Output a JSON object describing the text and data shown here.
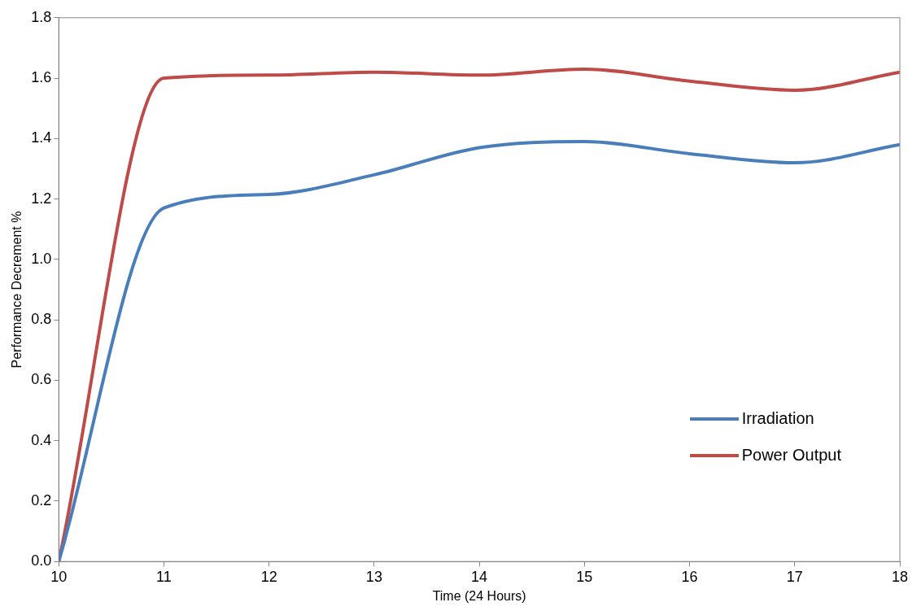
{
  "chart_data": {
    "type": "line",
    "xlabel": "Time (24 Hours)",
    "ylabel": "Performance Decrement %",
    "x": [
      10,
      11,
      12,
      13,
      14,
      15,
      16,
      17,
      18
    ],
    "series": [
      {
        "name": "Irradiation",
        "color": "#4a7ebb",
        "values": [
          0,
          1.17,
          1.215,
          1.28,
          1.37,
          1.39,
          1.35,
          1.32,
          1.38
        ]
      },
      {
        "name": "Power Output",
        "color": "#be4b48",
        "values": [
          0,
          1.6,
          1.61,
          1.62,
          1.61,
          1.63,
          1.59,
          1.56,
          1.62
        ]
      }
    ],
    "xlim": [
      10,
      18
    ],
    "xticks": [
      10,
      11,
      12,
      13,
      14,
      15,
      16,
      17,
      18
    ],
    "ylim": [
      0,
      1.8
    ],
    "yticks": [
      {
        "value": 0,
        "label": "0.0"
      },
      {
        "value": 0.2,
        "label": "0.2"
      },
      {
        "value": 0.4,
        "label": "0.4"
      },
      {
        "value": 0.6,
        "label": "0.6"
      },
      {
        "value": 0.8,
        "label": "0.8"
      },
      {
        "value": 1,
        "label": "1.0"
      },
      {
        "value": 1.2,
        "label": "1.2"
      },
      {
        "value": 1.4,
        "label": "1.4"
      },
      {
        "value": 1.6,
        "label": "1.6"
      },
      {
        "value": 1.8,
        "label": "1.8"
      }
    ],
    "grid": false,
    "legend": "bottom right",
    "marker": "none",
    "line_style": "solid"
  }
}
